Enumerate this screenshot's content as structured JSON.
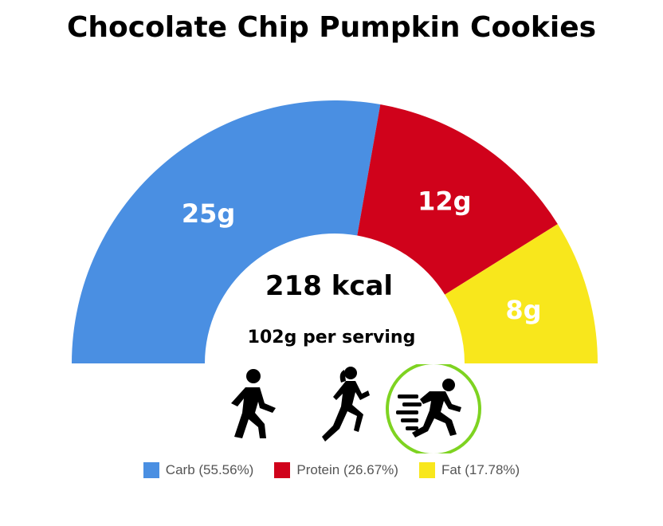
{
  "chart_data": {
    "type": "pie",
    "style": "semicircle-donut",
    "title": "Chocolate Chip Pumpkin Cookies",
    "center_label": "218 kcal",
    "center_sublabel": "102g per serving",
    "categories": [
      "Carb",
      "Protein",
      "Fat"
    ],
    "values": [
      25,
      12,
      8
    ],
    "value_labels": [
      "25g",
      "12g",
      "8g"
    ],
    "colors": [
      "#4a8fe2",
      "#d0021b",
      "#f8e71c"
    ],
    "legend": [
      {
        "label": "Carb (55.56%)",
        "color": "#4a8fe2"
      },
      {
        "label": "Protein (26.67%)",
        "color": "#d0021b"
      },
      {
        "label": "Fat (17.78%)",
        "color": "#f8e71c"
      }
    ],
    "legend_position": "bottom"
  },
  "activities": [
    {
      "name": "walking-icon",
      "highlighted": false
    },
    {
      "name": "jogging-icon",
      "highlighted": false
    },
    {
      "name": "running-icon",
      "highlighted": true,
      "highlight_color": "#7ed321"
    }
  ]
}
